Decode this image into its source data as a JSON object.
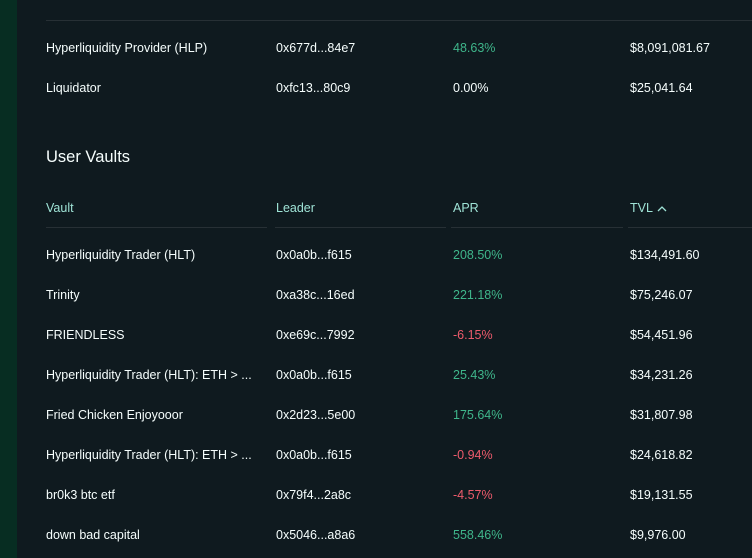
{
  "protocol_vaults": [
    {
      "vault": "Hyperliquidity Provider (HLP)",
      "leader": "0x677d...84e7",
      "apr": "48.63%",
      "apr_sign": "pos",
      "tvl": "$8,091,081.67"
    },
    {
      "vault": "Liquidator",
      "leader": "0xfc13...80c9",
      "apr": "0.00%",
      "apr_sign": "neutral",
      "tvl": "$25,041.64"
    }
  ],
  "user_vaults": {
    "title": "User Vaults",
    "headers": {
      "vault": "Vault",
      "leader": "Leader",
      "apr": "APR",
      "tvl": "TVL"
    },
    "sort_icon": "chevron-up-icon",
    "rows": [
      {
        "vault": "Hyperliquidity Trader (HLT)",
        "leader": "0x0a0b...f615",
        "apr": "208.50%",
        "apr_sign": "pos",
        "tvl": "$134,491.60"
      },
      {
        "vault": "Trinity",
        "leader": "0xa38c...16ed",
        "apr": "221.18%",
        "apr_sign": "pos",
        "tvl": "$75,246.07"
      },
      {
        "vault": "FRIENDLESS",
        "leader": "0xe69c...7992",
        "apr": "-6.15%",
        "apr_sign": "neg",
        "tvl": "$54,451.96"
      },
      {
        "vault": "Hyperliquidity Trader (HLT): ETH > ...",
        "leader": "0x0a0b...f615",
        "apr": "25.43%",
        "apr_sign": "pos",
        "tvl": "$34,231.26"
      },
      {
        "vault": "Fried Chicken Enjoyooor",
        "leader": "0x2d23...5e00",
        "apr": "175.64%",
        "apr_sign": "pos",
        "tvl": "$31,807.98"
      },
      {
        "vault": "Hyperliquidity Trader (HLT): ETH > ...",
        "leader": "0x0a0b...f615",
        "apr": "-0.94%",
        "apr_sign": "neg",
        "tvl": "$24,618.82"
      },
      {
        "vault": "br0k3 btc etf",
        "leader": "0x79f4...2a8c",
        "apr": "-4.57%",
        "apr_sign": "neg",
        "tvl": "$19,131.55"
      },
      {
        "vault": "down bad capital",
        "leader": "0x5046...a8a6",
        "apr": "558.46%",
        "apr_sign": "pos",
        "tvl": "$9,976.00"
      }
    ]
  },
  "colors": {
    "background": "#0f1a1f",
    "text": "#f6fefd",
    "header_text": "#9fe3d6",
    "positive": "#3fb68b",
    "negative": "#ed5b6c",
    "divider": "#273035",
    "side_strip": "#072d22"
  }
}
